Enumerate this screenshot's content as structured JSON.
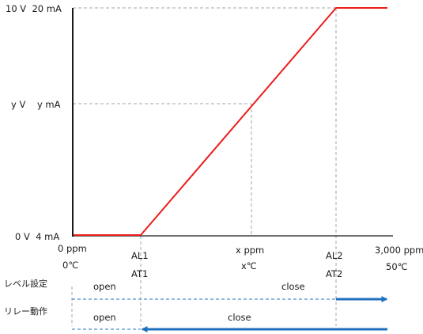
{
  "y_axis": {
    "top_label": "10 V  20 mA",
    "mid_label": "y V    y mA",
    "bottom_label": "0 V  4 mA"
  },
  "x_axis": {
    "origin_ppm": "0 ppm",
    "origin_temp": "0℃",
    "al1": "AL1",
    "at1": "AT1",
    "x_ppm": "x ppm",
    "x_temp": "x℃",
    "al2": "AL2",
    "at2": "AT2",
    "max_ppm": "3,000 ppm",
    "max_temp": "50℃"
  },
  "rows": [
    {
      "label": "レベル設定",
      "open_label": "open",
      "close_label": "close"
    },
    {
      "label": "リレー動作",
      "open_label": "open",
      "close_label": "close"
    }
  ],
  "colors": {
    "signal_line": "#ee1c1c",
    "relay_arrow": "#1f6fbf",
    "dashed_guide": "#a6a6a6",
    "axis": "#1a1a1a"
  }
}
